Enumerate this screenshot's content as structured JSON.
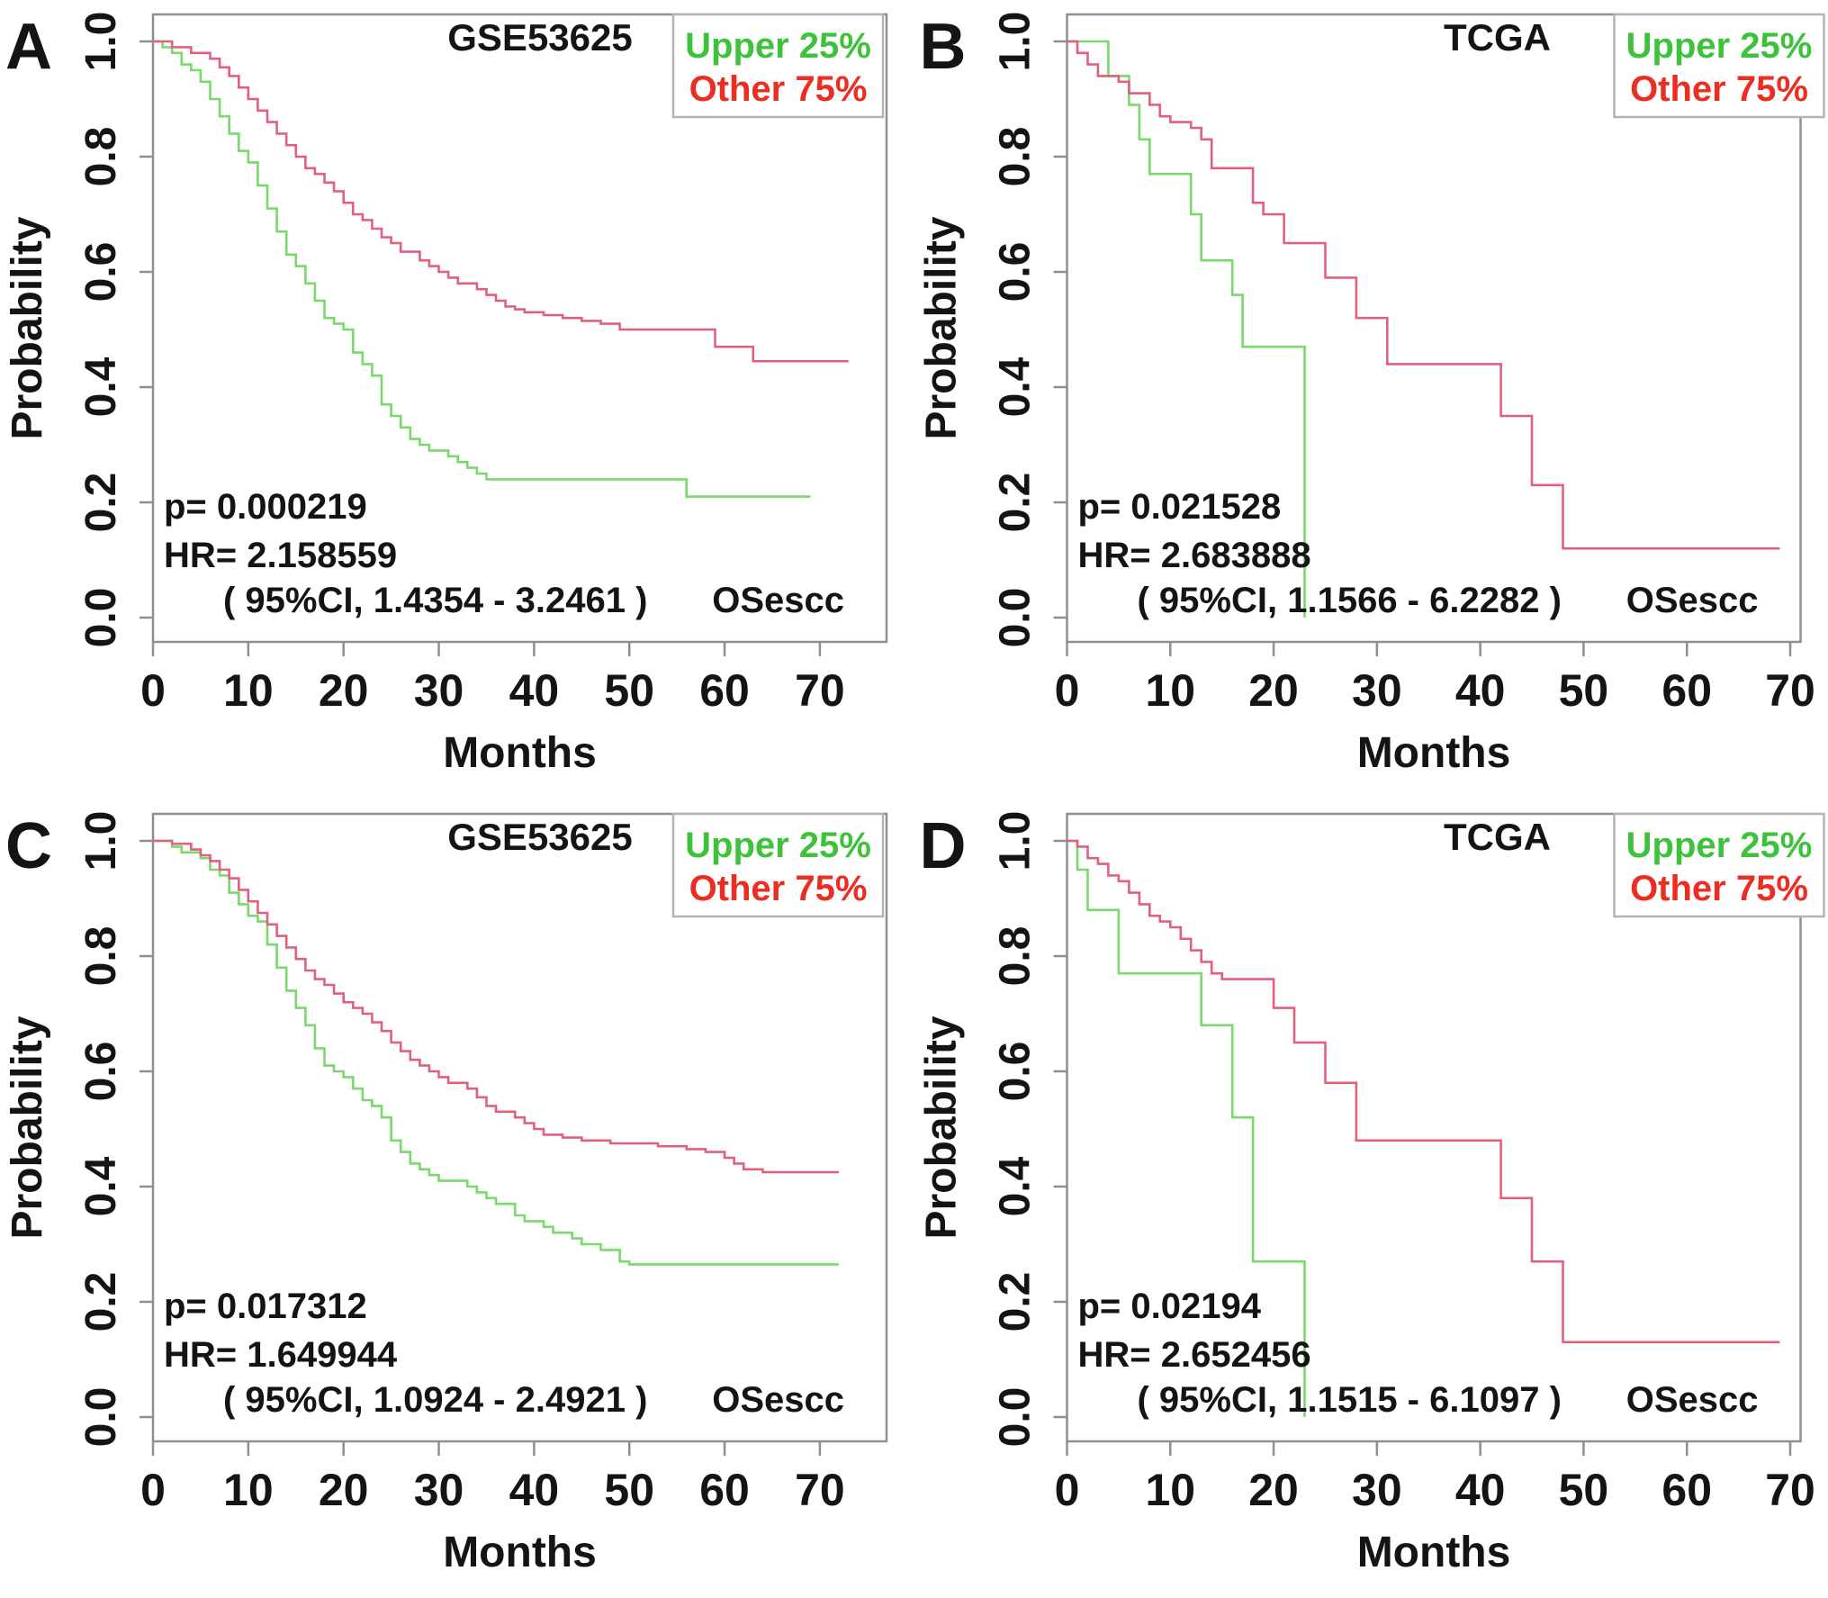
{
  "figure": {
    "background": "#ffffff",
    "description": "Four Kaplan-Meier overall survival curves comparing Upper 25% vs Other 75% expression groups in GSE53625 and TCGA ESCC cohorts"
  },
  "colors": {
    "upper_curve": "#79d96b",
    "other_curve": "#e2607e",
    "legend_upper_text": "#3fc23b",
    "legend_other_text": "#ec2d21",
    "text": "#141414",
    "frame": "#8f8f8f",
    "legend_border": "#b4b4b4"
  },
  "legend": {
    "upper_label": "Upper 25%",
    "other_label": "Other  75%"
  },
  "axes": {
    "xlabel": "Months",
    "ylabel": "Probability",
    "x_ticks": [
      0,
      10,
      20,
      30,
      40,
      50,
      60,
      70
    ],
    "y_ticks": [
      "0.0",
      "0.2",
      "0.4",
      "0.6",
      "0.8",
      "1.0"
    ]
  },
  "chart_data": [
    {
      "panel_label": "A",
      "type": "line",
      "subtype": "kaplan-meier-step",
      "title": "GSE53625",
      "corner_label": "OSescc",
      "stats": {
        "p": "p= 0.000219",
        "hr": "HR= 2.158559",
        "ci": "( 95%CI, 1.4354 - 3.2461 )"
      },
      "xlim": [
        0,
        77
      ],
      "ylim": [
        0,
        1
      ],
      "grid": false,
      "legend_position": "top-right",
      "series": [
        {
          "name": "Upper 25%",
          "color_key": "upper_curve",
          "points": [
            [
              0,
              1
            ],
            [
              1,
              0.99
            ],
            [
              2,
              0.98
            ],
            [
              3,
              0.96
            ],
            [
              4,
              0.95
            ],
            [
              5,
              0.93
            ],
            [
              6,
              0.9
            ],
            [
              7,
              0.87
            ],
            [
              8,
              0.84
            ],
            [
              9,
              0.81
            ],
            [
              10,
              0.79
            ],
            [
              11,
              0.75
            ],
            [
              12,
              0.71
            ],
            [
              13,
              0.67
            ],
            [
              14,
              0.63
            ],
            [
              15,
              0.61
            ],
            [
              16,
              0.58
            ],
            [
              17,
              0.55
            ],
            [
              18,
              0.52
            ],
            [
              19,
              0.51
            ],
            [
              20,
              0.5
            ],
            [
              21,
              0.46
            ],
            [
              22,
              0.44
            ],
            [
              23,
              0.42
            ],
            [
              24,
              0.37
            ],
            [
              25,
              0.35
            ],
            [
              26,
              0.33
            ],
            [
              27,
              0.31
            ],
            [
              28,
              0.3
            ],
            [
              29,
              0.29
            ],
            [
              31,
              0.28
            ],
            [
              32,
              0.27
            ],
            [
              33,
              0.26
            ],
            [
              34,
              0.25
            ],
            [
              35,
              0.24
            ],
            [
              56,
              0.21
            ],
            [
              69,
              0.21
            ]
          ]
        },
        {
          "name": "Other 75%",
          "color_key": "other_curve",
          "points": [
            [
              0,
              1
            ],
            [
              2,
              0.99
            ],
            [
              4,
              0.98
            ],
            [
              6,
              0.97
            ],
            [
              7,
              0.955
            ],
            [
              8,
              0.94
            ],
            [
              9,
              0.92
            ],
            [
              10,
              0.9
            ],
            [
              11,
              0.88
            ],
            [
              12,
              0.86
            ],
            [
              13,
              0.84
            ],
            [
              14,
              0.82
            ],
            [
              15,
              0.8
            ],
            [
              16,
              0.78
            ],
            [
              17,
              0.77
            ],
            [
              18,
              0.755
            ],
            [
              19,
              0.74
            ],
            [
              20,
              0.72
            ],
            [
              21,
              0.7
            ],
            [
              22,
              0.69
            ],
            [
              23,
              0.675
            ],
            [
              24,
              0.66
            ],
            [
              25,
              0.65
            ],
            [
              26,
              0.635
            ],
            [
              28,
              0.62
            ],
            [
              29,
              0.61
            ],
            [
              30,
              0.6
            ],
            [
              31,
              0.59
            ],
            [
              32,
              0.58
            ],
            [
              34,
              0.57
            ],
            [
              35,
              0.56
            ],
            [
              36,
              0.55
            ],
            [
              37,
              0.54
            ],
            [
              38,
              0.535
            ],
            [
              39,
              0.53
            ],
            [
              41,
              0.525
            ],
            [
              43,
              0.52
            ],
            [
              45,
              0.515
            ],
            [
              47,
              0.51
            ],
            [
              49,
              0.5
            ],
            [
              59,
              0.47
            ],
            [
              63,
              0.445
            ],
            [
              73,
              0.445
            ]
          ]
        }
      ]
    },
    {
      "panel_label": "B",
      "type": "line",
      "subtype": "kaplan-meier-step",
      "title": "TCGA",
      "corner_label": "OSescc",
      "stats": {
        "p": "p= 0.021528",
        "hr": "HR= 2.683888",
        "ci": "( 95%CI, 1.1566 - 6.2282 )"
      },
      "xlim": [
        0,
        71
      ],
      "ylim": [
        0,
        1
      ],
      "grid": false,
      "legend_position": "top-right",
      "series": [
        {
          "name": "Upper 25%",
          "color_key": "upper_curve",
          "points": [
            [
              0,
              1
            ],
            [
              4,
              0.94
            ],
            [
              6,
              0.89
            ],
            [
              7,
              0.83
            ],
            [
              8,
              0.77
            ],
            [
              12,
              0.7
            ],
            [
              13,
              0.62
            ],
            [
              16,
              0.56
            ],
            [
              17,
              0.47
            ],
            [
              23,
              0
            ]
          ]
        },
        {
          "name": "Other 75%",
          "color_key": "other_curve",
          "points": [
            [
              0,
              1
            ],
            [
              1,
              0.98
            ],
            [
              2,
              0.96
            ],
            [
              3,
              0.94
            ],
            [
              5,
              0.93
            ],
            [
              6,
              0.91
            ],
            [
              8,
              0.89
            ],
            [
              9,
              0.87
            ],
            [
              10,
              0.86
            ],
            [
              12,
              0.85
            ],
            [
              13,
              0.83
            ],
            [
              14,
              0.78
            ],
            [
              18,
              0.72
            ],
            [
              19,
              0.7
            ],
            [
              21,
              0.65
            ],
            [
              25,
              0.59
            ],
            [
              28,
              0.52
            ],
            [
              31,
              0.44
            ],
            [
              42,
              0.35
            ],
            [
              45,
              0.23
            ],
            [
              48,
              0.12
            ],
            [
              69,
              0.12
            ]
          ]
        }
      ]
    },
    {
      "panel_label": "C",
      "type": "line",
      "subtype": "kaplan-meier-step",
      "title": "GSE53625",
      "corner_label": "OSescc",
      "stats": {
        "p": "p= 0.017312",
        "hr": "HR= 1.649944",
        "ci": "( 95%CI, 1.0924 - 2.4921 )"
      },
      "xlim": [
        0,
        77
      ],
      "ylim": [
        0,
        1
      ],
      "grid": false,
      "legend_position": "top-right",
      "series": [
        {
          "name": "Upper 25%",
          "color_key": "upper_curve",
          "points": [
            [
              0,
              1
            ],
            [
              2,
              0.99
            ],
            [
              3,
              0.98
            ],
            [
              5,
              0.97
            ],
            [
              6,
              0.95
            ],
            [
              7,
              0.94
            ],
            [
              8,
              0.91
            ],
            [
              9,
              0.89
            ],
            [
              10,
              0.87
            ],
            [
              11,
              0.86
            ],
            [
              12,
              0.82
            ],
            [
              13,
              0.78
            ],
            [
              14,
              0.74
            ],
            [
              15,
              0.71
            ],
            [
              16,
              0.68
            ],
            [
              17,
              0.64
            ],
            [
              18,
              0.61
            ],
            [
              19,
              0.6
            ],
            [
              20,
              0.59
            ],
            [
              21,
              0.57
            ],
            [
              22,
              0.55
            ],
            [
              23,
              0.54
            ],
            [
              24,
              0.52
            ],
            [
              25,
              0.48
            ],
            [
              26,
              0.46
            ],
            [
              27,
              0.44
            ],
            [
              28,
              0.43
            ],
            [
              29,
              0.42
            ],
            [
              30,
              0.41
            ],
            [
              33,
              0.4
            ],
            [
              34,
              0.39
            ],
            [
              35,
              0.38
            ],
            [
              36,
              0.37
            ],
            [
              38,
              0.35
            ],
            [
              39,
              0.34
            ],
            [
              41,
              0.33
            ],
            [
              42,
              0.32
            ],
            [
              44,
              0.31
            ],
            [
              45,
              0.3
            ],
            [
              47,
              0.29
            ],
            [
              49,
              0.27
            ],
            [
              50,
              0.265
            ],
            [
              72,
              0.265
            ]
          ]
        },
        {
          "name": "Other 75%",
          "color_key": "other_curve",
          "points": [
            [
              0,
              1
            ],
            [
              2,
              0.995
            ],
            [
              4,
              0.985
            ],
            [
              5,
              0.975
            ],
            [
              6,
              0.965
            ],
            [
              7,
              0.95
            ],
            [
              8,
              0.935
            ],
            [
              9,
              0.915
            ],
            [
              10,
              0.895
            ],
            [
              11,
              0.875
            ],
            [
              12,
              0.855
            ],
            [
              13,
              0.835
            ],
            [
              14,
              0.815
            ],
            [
              15,
              0.795
            ],
            [
              16,
              0.775
            ],
            [
              17,
              0.76
            ],
            [
              18,
              0.75
            ],
            [
              19,
              0.735
            ],
            [
              20,
              0.72
            ],
            [
              21,
              0.71
            ],
            [
              22,
              0.7
            ],
            [
              23,
              0.685
            ],
            [
              24,
              0.67
            ],
            [
              25,
              0.65
            ],
            [
              26,
              0.635
            ],
            [
              27,
              0.62
            ],
            [
              28,
              0.61
            ],
            [
              29,
              0.6
            ],
            [
              30,
              0.59
            ],
            [
              31,
              0.58
            ],
            [
              33,
              0.57
            ],
            [
              34,
              0.555
            ],
            [
              35,
              0.54
            ],
            [
              36,
              0.53
            ],
            [
              38,
              0.52
            ],
            [
              39,
              0.51
            ],
            [
              40,
              0.5
            ],
            [
              41,
              0.49
            ],
            [
              43,
              0.485
            ],
            [
              45,
              0.48
            ],
            [
              48,
              0.475
            ],
            [
              53,
              0.47
            ],
            [
              56,
              0.465
            ],
            [
              58,
              0.46
            ],
            [
              60,
              0.45
            ],
            [
              61,
              0.44
            ],
            [
              62,
              0.43
            ],
            [
              64,
              0.425
            ],
            [
              72,
              0.425
            ]
          ]
        }
      ]
    },
    {
      "panel_label": "D",
      "type": "line",
      "subtype": "kaplan-meier-step",
      "title": "TCGA",
      "corner_label": "OSescc",
      "stats": {
        "p": "p= 0.02194",
        "hr": "HR= 2.652456",
        "ci": "( 95%CI, 1.1515 - 6.1097 )"
      },
      "xlim": [
        0,
        71
      ],
      "ylim": [
        0,
        1
      ],
      "grid": false,
      "legend_position": "top-right",
      "series": [
        {
          "name": "Upper 25%",
          "color_key": "upper_curve",
          "points": [
            [
              0,
              1
            ],
            [
              1,
              0.95
            ],
            [
              2,
              0.88
            ],
            [
              5,
              0.77
            ],
            [
              13,
              0.68
            ],
            [
              16,
              0.52
            ],
            [
              18,
              0.27
            ],
            [
              23,
              0
            ]
          ]
        },
        {
          "name": "Other 75%",
          "color_key": "other_curve",
          "points": [
            [
              0,
              1
            ],
            [
              1,
              0.99
            ],
            [
              2,
              0.97
            ],
            [
              3,
              0.96
            ],
            [
              4,
              0.94
            ],
            [
              5,
              0.93
            ],
            [
              6,
              0.91
            ],
            [
              7,
              0.89
            ],
            [
              8,
              0.87
            ],
            [
              9,
              0.86
            ],
            [
              10,
              0.85
            ],
            [
              11,
              0.83
            ],
            [
              12,
              0.81
            ],
            [
              13,
              0.79
            ],
            [
              14,
              0.77
            ],
            [
              15,
              0.76
            ],
            [
              20,
              0.71
            ],
            [
              22,
              0.65
            ],
            [
              25,
              0.58
            ],
            [
              28,
              0.48
            ],
            [
              42,
              0.38
            ],
            [
              45,
              0.27
            ],
            [
              48,
              0.13
            ],
            [
              69,
              0.13
            ]
          ]
        }
      ]
    }
  ]
}
